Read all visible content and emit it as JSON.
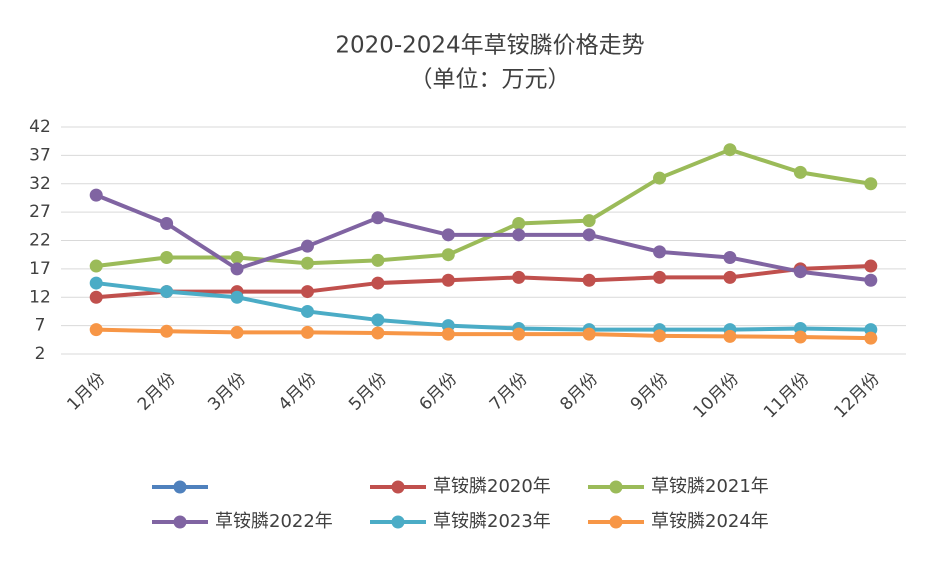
{
  "chart_data": {
    "type": "line",
    "title": "2020-2024年草铵膦价格走势",
    "subtitle": "（单位：万元）",
    "categories": [
      "1月份",
      "2月份",
      "3月份",
      "4月份",
      "5月份",
      "6月份",
      "7月份",
      "8月份",
      "9月份",
      "10月份",
      "11月份",
      "12月份"
    ],
    "ylim": [
      2,
      42
    ],
    "yticks": [
      2,
      7,
      12,
      17,
      22,
      27,
      32,
      37,
      42
    ],
    "grid": true,
    "legend": "bottom",
    "series": [
      {
        "color": "#4f81bd",
        "values": [
          null,
          null,
          null,
          null,
          null,
          null,
          null,
          null,
          null,
          null,
          null,
          null
        ]
      },
      {
        "name": "草铵膦2020年",
        "color": "#c0504d",
        "values": [
          12,
          13,
          13,
          13,
          14.5,
          15,
          15.5,
          15,
          15.5,
          15.5,
          17,
          17.5
        ]
      },
      {
        "name": "草铵膦2021年",
        "color": "#9bbb59",
        "values": [
          17.5,
          19,
          19,
          18,
          18.5,
          19.5,
          25,
          25.5,
          33,
          38,
          34,
          32
        ]
      },
      {
        "name": "草铵膦2022年",
        "color": "#8064a2",
        "values": [
          30,
          25,
          17,
          21,
          26,
          23,
          23,
          23,
          20,
          19,
          16.5,
          15
        ]
      },
      {
        "name": "草铵膦2023年",
        "color": "#4bacc6",
        "values": [
          14.5,
          13,
          12,
          9.5,
          8,
          7,
          6.5,
          6.3,
          6.3,
          6.3,
          6.5,
          6.3
        ]
      },
      {
        "name": "草铵膦2024年",
        "color": "#f79646",
        "values": [
          6.3,
          6,
          5.8,
          5.8,
          5.7,
          5.5,
          5.5,
          5.5,
          5.2,
          5.1,
          5.0,
          4.8
        ]
      }
    ]
  }
}
